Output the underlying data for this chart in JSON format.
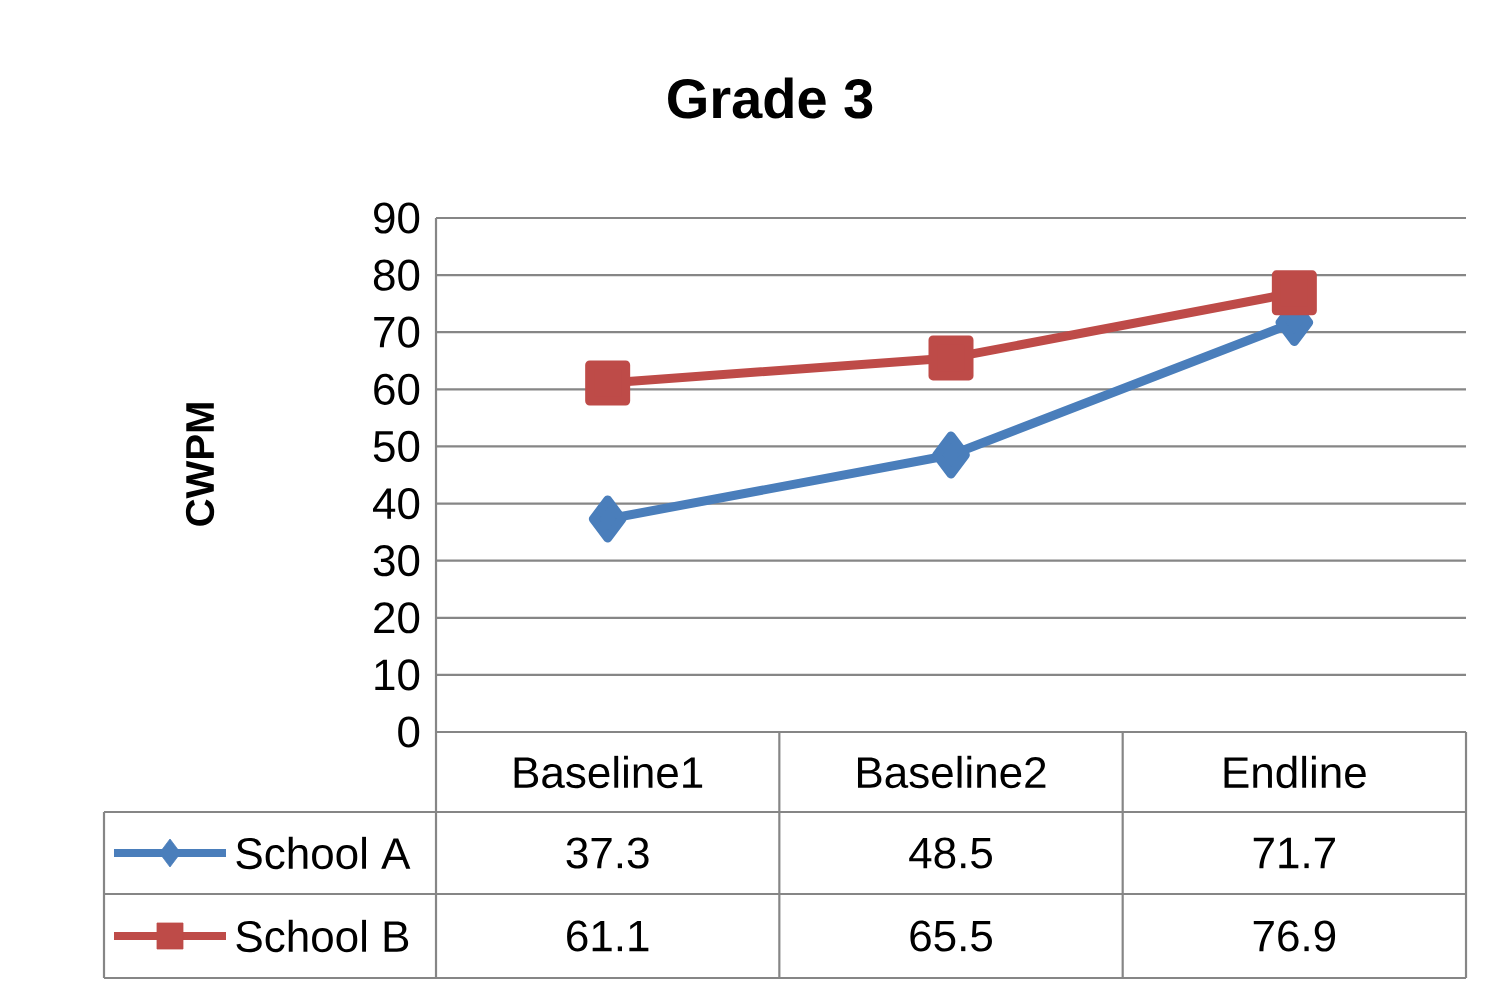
{
  "chart_data": {
    "type": "line",
    "title": "Grade 3",
    "ylabel": "CWPM",
    "categories": [
      "Baseline1",
      "Baseline2",
      "Endline"
    ],
    "series": [
      {
        "name": "School A",
        "color": "#4a7ebb",
        "values": [
          37.3,
          48.5,
          71.7
        ],
        "marker": "diamond"
      },
      {
        "name": "School B",
        "color": "#be4b48",
        "values": [
          61.1,
          65.5,
          76.9
        ],
        "marker": "square"
      }
    ],
    "ylim": [
      0,
      90
    ],
    "yticks": [
      0,
      10,
      20,
      30,
      40,
      50,
      60,
      70,
      80,
      90
    ],
    "grid": "y",
    "legend": "bottom left",
    "data_labels": true,
    "line_style": "solid"
  }
}
